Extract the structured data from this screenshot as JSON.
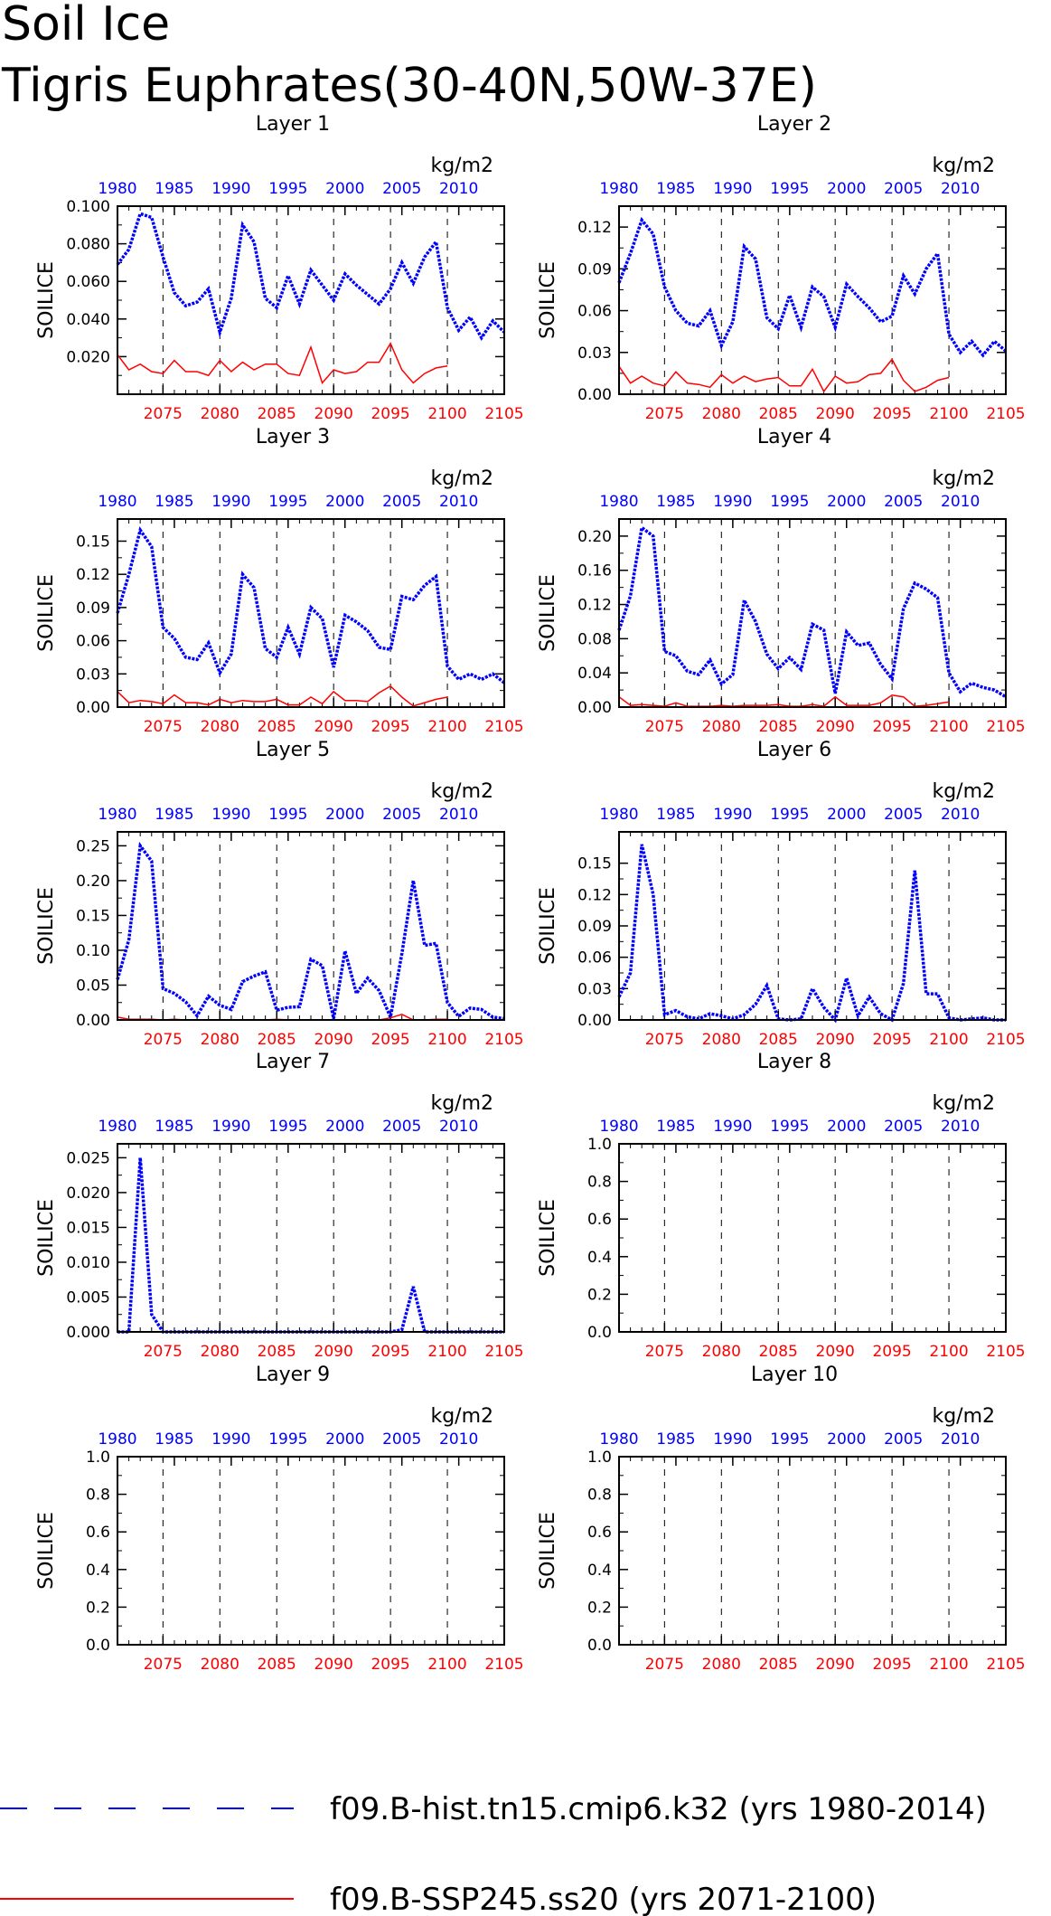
{
  "page": {
    "title_line1": "Soil Ice",
    "title_line2": "Tigris Euphrates(30-40N,50W-37E)"
  },
  "colors": {
    "hist": "#0000ff",
    "ssp": "#ff0000",
    "axis": "#000000"
  },
  "legend": [
    {
      "label": "f09.B-hist.tn15.cmip6.k32 (yrs 1980-2014)",
      "color": "#0000ff",
      "style": "dashed"
    },
    {
      "label": "f09.B-SSP245.ss20 (yrs 2071-2100)",
      "color": "#ff0000",
      "style": "solid"
    }
  ],
  "chart_data": [
    {
      "type": "line",
      "title": "Layer 1",
      "ylabel": "SOILICE",
      "units": "kg/m2",
      "ylim": [
        0,
        0.1
      ],
      "yticks": [
        0.02,
        0.04,
        0.06,
        0.08,
        0.1
      ],
      "ytick_labels": [
        "0.020",
        "0.040",
        "0.060",
        "0.080",
        "0.100"
      ],
      "x_top": [
        1980,
        1985,
        1990,
        1995,
        2000,
        2005,
        2010
      ],
      "x_bottom": [
        2075,
        2080,
        2085,
        2090,
        2095,
        2100,
        2105
      ],
      "hist": [
        0.069,
        0.077,
        0.096,
        0.094,
        0.073,
        0.054,
        0.047,
        0.049,
        0.056,
        0.033,
        0.051,
        0.09,
        0.081,
        0.051,
        0.046,
        0.063,
        0.048,
        0.066,
        0.058,
        0.05,
        0.064,
        0.058,
        0.053,
        0.048,
        0.056,
        0.07,
        0.059,
        0.073,
        0.081,
        0.046,
        0.034,
        0.041,
        0.03,
        0.039,
        0.033
      ],
      "ssp": [
        0.021,
        0.013,
        0.016,
        0.012,
        0.011,
        0.018,
        0.012,
        0.012,
        0.01,
        0.018,
        0.012,
        0.017,
        0.013,
        0.016,
        0.016,
        0.011,
        0.01,
        0.025,
        0.006,
        0.013,
        0.011,
        0.012,
        0.017,
        0.017,
        0.027,
        0.013,
        0.006,
        0.011,
        0.014,
        0.015
      ]
    },
    {
      "type": "line",
      "title": "Layer 2",
      "ylabel": "SOILICE",
      "units": "kg/m2",
      "ylim": [
        0,
        0.135
      ],
      "yticks": [
        0,
        0.03,
        0.06,
        0.09,
        0.12
      ],
      "ytick_labels": [
        "0.00",
        "0.03",
        "0.06",
        "0.09",
        "0.12"
      ],
      "x_top": [
        1980,
        1985,
        1990,
        1995,
        2000,
        2005,
        2010
      ],
      "x_bottom": [
        2075,
        2080,
        2085,
        2090,
        2095,
        2100,
        2105
      ],
      "hist": [
        0.08,
        0.101,
        0.125,
        0.115,
        0.077,
        0.06,
        0.051,
        0.049,
        0.06,
        0.035,
        0.052,
        0.106,
        0.097,
        0.055,
        0.047,
        0.071,
        0.048,
        0.077,
        0.07,
        0.048,
        0.079,
        0.07,
        0.062,
        0.052,
        0.056,
        0.085,
        0.072,
        0.09,
        0.101,
        0.043,
        0.03,
        0.038,
        0.028,
        0.038,
        0.031
      ],
      "ssp": [
        0.02,
        0.008,
        0.013,
        0.008,
        0.006,
        0.016,
        0.008,
        0.007,
        0.005,
        0.014,
        0.008,
        0.013,
        0.009,
        0.011,
        0.012,
        0.006,
        0.006,
        0.018,
        0.002,
        0.013,
        0.008,
        0.009,
        0.014,
        0.015,
        0.025,
        0.01,
        0.002,
        0.005,
        0.01,
        0.012
      ]
    },
    {
      "type": "line",
      "title": "Layer 3",
      "ylabel": "SOILICE",
      "units": "kg/m2",
      "ylim": [
        0,
        0.17
      ],
      "yticks": [
        0,
        0.03,
        0.06,
        0.09,
        0.12,
        0.15
      ],
      "ytick_labels": [
        "0.00",
        "0.03",
        "0.06",
        "0.09",
        "0.12",
        "0.15"
      ],
      "x_top": [
        1980,
        1985,
        1990,
        1995,
        2000,
        2005,
        2010
      ],
      "x_bottom": [
        2075,
        2080,
        2085,
        2090,
        2095,
        2100,
        2105
      ],
      "hist": [
        0.085,
        0.12,
        0.16,
        0.145,
        0.072,
        0.062,
        0.045,
        0.043,
        0.058,
        0.031,
        0.048,
        0.12,
        0.108,
        0.053,
        0.045,
        0.072,
        0.048,
        0.09,
        0.08,
        0.036,
        0.083,
        0.077,
        0.069,
        0.054,
        0.052,
        0.1,
        0.097,
        0.11,
        0.118,
        0.037,
        0.025,
        0.03,
        0.025,
        0.03,
        0.022
      ],
      "ssp": [
        0.014,
        0.004,
        0.006,
        0.005,
        0.003,
        0.011,
        0.004,
        0.004,
        0.002,
        0.007,
        0.004,
        0.006,
        0.005,
        0.005,
        0.007,
        0.002,
        0.002,
        0.009,
        0.003,
        0.014,
        0.006,
        0.006,
        0.005,
        0.013,
        0.019,
        0.009,
        0.001,
        0.004,
        0.007,
        0.009
      ]
    },
    {
      "type": "line",
      "title": "Layer 4",
      "ylabel": "SOILICE",
      "units": "kg/m2",
      "ylim": [
        0,
        0.22
      ],
      "yticks": [
        0,
        0.04,
        0.08,
        0.12,
        0.16,
        0.2
      ],
      "ytick_labels": [
        "0.00",
        "0.04",
        "0.08",
        "0.12",
        "0.16",
        "0.20"
      ],
      "x_top": [
        1980,
        1985,
        1990,
        1995,
        2000,
        2005,
        2010
      ],
      "x_bottom": [
        2075,
        2080,
        2085,
        2090,
        2095,
        2100,
        2105
      ],
      "hist": [
        0.09,
        0.13,
        0.21,
        0.2,
        0.065,
        0.06,
        0.042,
        0.038,
        0.055,
        0.027,
        0.038,
        0.125,
        0.1,
        0.062,
        0.045,
        0.058,
        0.044,
        0.097,
        0.09,
        0.016,
        0.088,
        0.072,
        0.075,
        0.05,
        0.033,
        0.115,
        0.145,
        0.138,
        0.128,
        0.04,
        0.018,
        0.028,
        0.023,
        0.02,
        0.012
      ],
      "ssp": [
        0.012,
        0.002,
        0.003,
        0.002,
        0.001,
        0.005,
        0.001,
        0.001,
        0.001,
        0.002,
        0.001,
        0.002,
        0.002,
        0.002,
        0.003,
        0.001,
        0.001,
        0.003,
        0.001,
        0.012,
        0.002,
        0.002,
        0.002,
        0.005,
        0.014,
        0.012,
        0.001,
        0.002,
        0.004,
        0.006
      ]
    },
    {
      "type": "line",
      "title": "Layer 5",
      "ylabel": "SOILICE",
      "units": "kg/m2",
      "ylim": [
        0,
        0.27
      ],
      "yticks": [
        0,
        0.05,
        0.1,
        0.15,
        0.2,
        0.25
      ],
      "ytick_labels": [
        "0.00",
        "0.05",
        "0.10",
        "0.15",
        "0.20",
        "0.25"
      ],
      "x_top": [
        1980,
        1985,
        1990,
        1995,
        2000,
        2005,
        2010
      ],
      "x_bottom": [
        2075,
        2080,
        2085,
        2090,
        2095,
        2100,
        2105
      ],
      "hist": [
        0.058,
        0.115,
        0.25,
        0.228,
        0.045,
        0.038,
        0.026,
        0.006,
        0.034,
        0.021,
        0.015,
        0.055,
        0.063,
        0.069,
        0.014,
        0.018,
        0.019,
        0.087,
        0.078,
        0.002,
        0.099,
        0.038,
        0.06,
        0.042,
        0.004,
        0.095,
        0.2,
        0.107,
        0.11,
        0.025,
        0.005,
        0.017,
        0.015,
        0.004,
        0.002
      ],
      "ssp": [
        0.004,
        0.001,
        0.001,
        0.001,
        0.0,
        0.001,
        0.0,
        0.0,
        0.0,
        0.0,
        0.0,
        0.0,
        0.0,
        0.0,
        0.001,
        0.0,
        0.0,
        0.0,
        0.0,
        0.0,
        0.0,
        0.0,
        0.0,
        0.0,
        0.003,
        0.008,
        0.0,
        0.0,
        0.001,
        0.001
      ]
    },
    {
      "type": "line",
      "title": "Layer 6",
      "ylabel": "SOILICE",
      "units": "kg/m2",
      "ylim": [
        0,
        0.18
      ],
      "yticks": [
        0,
        0.03,
        0.06,
        0.09,
        0.12,
        0.15
      ],
      "ytick_labels": [
        "0.00",
        "0.03",
        "0.06",
        "0.09",
        "0.12",
        "0.15"
      ],
      "x_top": [
        1980,
        1985,
        1990,
        1995,
        2000,
        2005,
        2010
      ],
      "x_bottom": [
        2075,
        2080,
        2085,
        2090,
        2095,
        2100,
        2105
      ],
      "hist": [
        0.022,
        0.045,
        0.168,
        0.12,
        0.005,
        0.009,
        0.003,
        0.001,
        0.006,
        0.004,
        0.001,
        0.005,
        0.015,
        0.033,
        0.001,
        0.0,
        0.001,
        0.03,
        0.012,
        0.0,
        0.04,
        0.004,
        0.022,
        0.006,
        0.0,
        0.035,
        0.143,
        0.025,
        0.025,
        0.002,
        0.0,
        0.001,
        0.002,
        0.0,
        0.0
      ],
      "ssp": [
        0.0,
        0.0,
        0.0,
        0.0,
        0.0,
        0.0,
        0.0,
        0.0,
        0.0,
        0.0,
        0.0,
        0.0,
        0.0,
        0.0,
        0.0,
        0.0,
        0.0,
        0.0,
        0.0,
        0.0,
        0.0,
        0.0,
        0.0,
        0.0,
        0.0,
        0.0,
        0.0,
        0.0,
        0.0,
        0.0
      ]
    },
    {
      "type": "line",
      "title": "Layer 7",
      "ylabel": "SOILICE",
      "units": "kg/m2",
      "ylim": [
        0,
        0.027
      ],
      "yticks": [
        0,
        0.005,
        0.01,
        0.015,
        0.02,
        0.025
      ],
      "ytick_labels": [
        "0.000",
        "0.005",
        "0.010",
        "0.015",
        "0.020",
        "0.025"
      ],
      "x_top": [
        1980,
        1985,
        1990,
        1995,
        2000,
        2005,
        2010
      ],
      "x_bottom": [
        2075,
        2080,
        2085,
        2090,
        2095,
        2100,
        2105
      ],
      "hist": [
        0.0,
        0.0,
        0.025,
        0.0025,
        0.0,
        0.0,
        0.0,
        0.0,
        0.0,
        0.0,
        0.0,
        0.0,
        0.0,
        0.0,
        0.0,
        0.0,
        0.0,
        0.0,
        0.0,
        0.0,
        0.0,
        0.0,
        0.0,
        0.0,
        0.0,
        0.0003,
        0.0065,
        0.0,
        0.0,
        0.0,
        0.0,
        0.0,
        0.0,
        0.0,
        0.0
      ],
      "ssp": [
        0.0,
        0.0,
        0.0,
        0.0,
        0.0,
        0.0,
        0.0,
        0.0,
        0.0,
        0.0,
        0.0,
        0.0,
        0.0,
        0.0,
        0.0,
        0.0,
        0.0,
        0.0,
        0.0,
        0.0,
        0.0,
        0.0,
        0.0,
        0.0,
        0.0,
        0.0,
        0.0,
        0.0,
        0.0,
        0.0
      ]
    },
    {
      "type": "line",
      "title": "Layer 8",
      "ylabel": "SOILICE",
      "units": "kg/m2",
      "ylim": [
        0,
        1.0
      ],
      "yticks": [
        0,
        0.2,
        0.4,
        0.6,
        0.8,
        1.0
      ],
      "ytick_labels": [
        "0.0",
        "0.2",
        "0.4",
        "0.6",
        "0.8",
        "1.0"
      ],
      "x_top": [
        1980,
        1985,
        1990,
        1995,
        2000,
        2005,
        2010
      ],
      "x_bottom": [
        2075,
        2080,
        2085,
        2090,
        2095,
        2100,
        2105
      ],
      "hist": [],
      "ssp": []
    },
    {
      "type": "line",
      "title": "Layer 9",
      "ylabel": "SOILICE",
      "units": "kg/m2",
      "ylim": [
        0,
        1.0
      ],
      "yticks": [
        0,
        0.2,
        0.4,
        0.6,
        0.8,
        1.0
      ],
      "ytick_labels": [
        "0.0",
        "0.2",
        "0.4",
        "0.6",
        "0.8",
        "1.0"
      ],
      "x_top": [
        1980,
        1985,
        1990,
        1995,
        2000,
        2005,
        2010
      ],
      "x_bottom": [
        2075,
        2080,
        2085,
        2090,
        2095,
        2100,
        2105
      ],
      "hist": [],
      "ssp": []
    },
    {
      "type": "line",
      "title": "Layer 10",
      "ylabel": "SOILICE",
      "units": "kg/m2",
      "ylim": [
        0,
        1.0
      ],
      "yticks": [
        0,
        0.2,
        0.4,
        0.6,
        0.8,
        1.0
      ],
      "ytick_labels": [
        "0.0",
        "0.2",
        "0.4",
        "0.6",
        "0.8",
        "1.0"
      ],
      "x_top": [
        1980,
        1985,
        1990,
        1995,
        2000,
        2005,
        2010
      ],
      "x_bottom": [
        2075,
        2080,
        2085,
        2090,
        2095,
        2100,
        2105
      ],
      "hist": [],
      "ssp": []
    }
  ]
}
